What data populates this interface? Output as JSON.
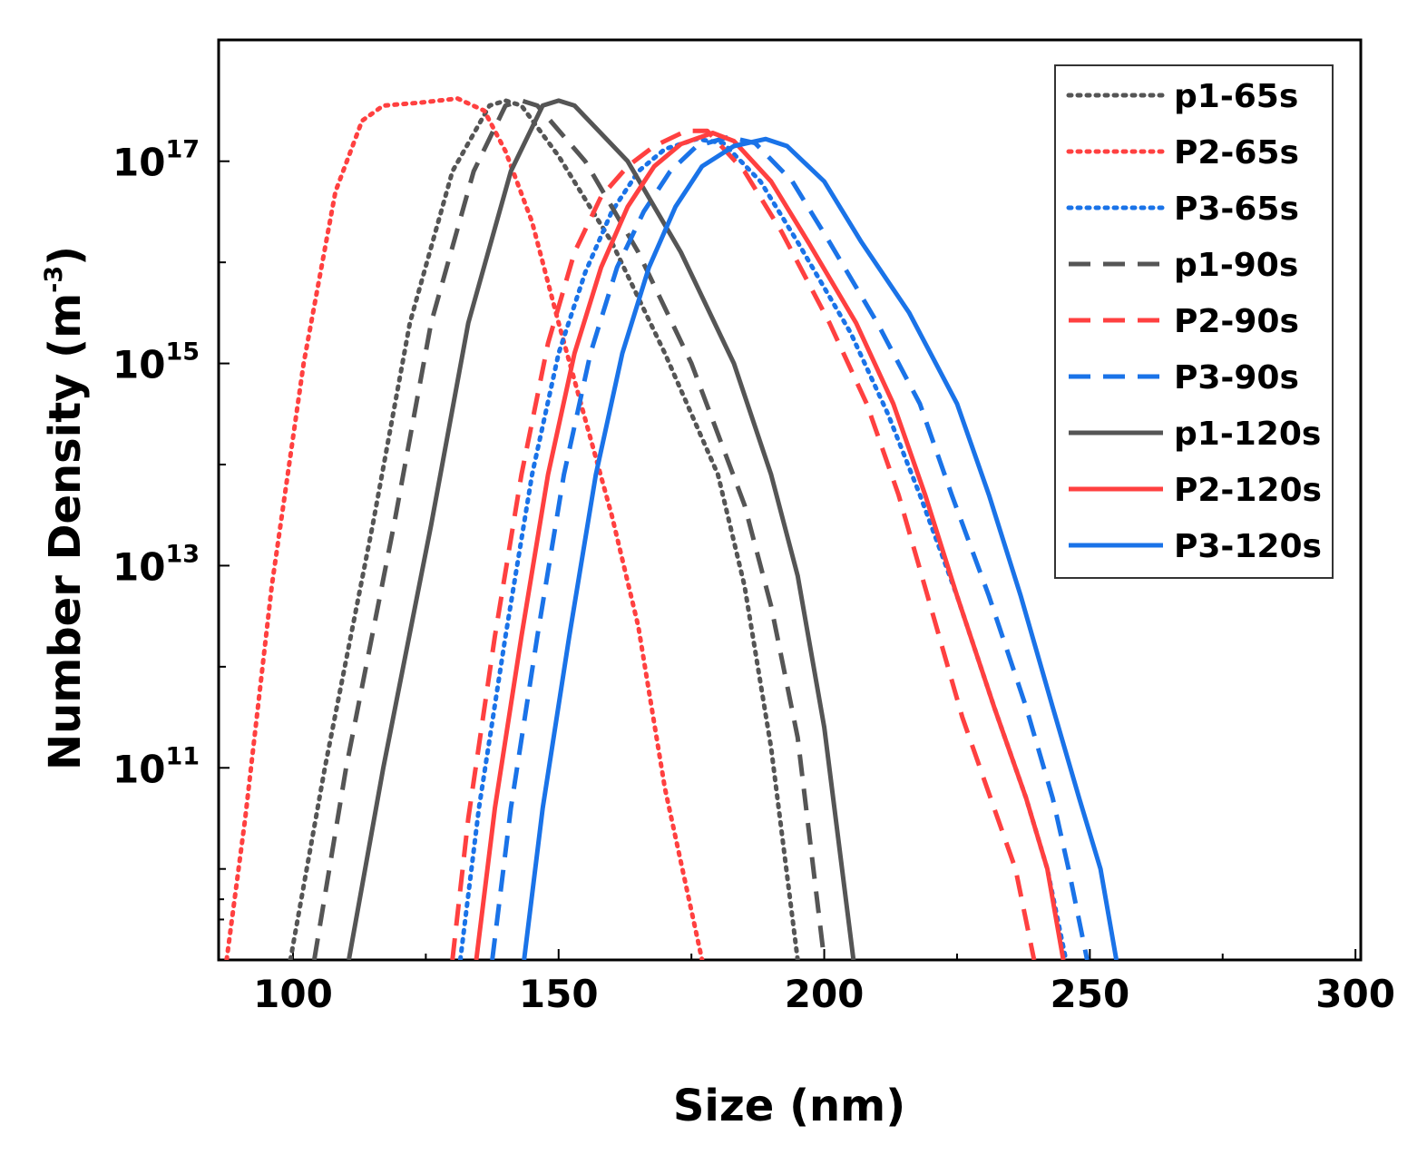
{
  "chart_data": {
    "type": "line",
    "title": "",
    "xlabel": "Size (nm)",
    "ylabel_main": "Number Density (m",
    "ylabel_exp": "-3",
    "ylabel_close": ")",
    "xscale": "linear",
    "yscale": "log",
    "xlim": [
      86,
      301
    ],
    "ylim_log10": [
      9.1,
      18.2
    ],
    "x_ticks": [
      {
        "value": 100,
        "label": "100"
      },
      {
        "value": 150,
        "label": "150"
      },
      {
        "value": 200,
        "label": "200"
      },
      {
        "value": 250,
        "label": "250"
      },
      {
        "value": 300,
        "label": "300"
      }
    ],
    "y_ticks": [
      {
        "exp": 11,
        "base": "10",
        "sup": "11"
      },
      {
        "exp": 13,
        "base": "10",
        "sup": "13"
      },
      {
        "exp": 15,
        "base": "10",
        "sup": "15"
      },
      {
        "exp": 17,
        "base": "10",
        "sup": "17"
      }
    ],
    "y_minor_ticks": [
      10,
      12,
      14,
      16
    ],
    "legend_position": "top-right",
    "series": [
      {
        "name": "p1-65s",
        "color": "#555555",
        "style": "dotted",
        "points": [
          [
            99.5,
            9.1
          ],
          [
            106,
            11
          ],
          [
            115,
            13.4
          ],
          [
            122,
            15.4
          ],
          [
            130,
            16.9
          ],
          [
            137,
            17.55
          ],
          [
            140,
            17.6
          ],
          [
            143,
            17.55
          ],
          [
            150,
            17.05
          ],
          [
            160,
            16.2
          ],
          [
            170,
            15.1
          ],
          [
            180,
            13.9
          ],
          [
            185,
            12.8
          ],
          [
            190,
            11.2
          ],
          [
            195,
            9.1
          ]
        ]
      },
      {
        "name": "P2-65s",
        "color": "#ff4040",
        "style": "dotted",
        "points": [
          [
            87.5,
            9.1
          ],
          [
            91,
            10.5
          ],
          [
            96,
            12.8
          ],
          [
            102,
            15
          ],
          [
            108,
            16.7
          ],
          [
            113,
            17.4
          ],
          [
            117,
            17.55
          ],
          [
            124,
            17.58
          ],
          [
            131,
            17.62
          ],
          [
            136,
            17.5
          ],
          [
            140,
            17.1
          ],
          [
            145,
            16.4
          ],
          [
            150,
            15.4
          ],
          [
            160,
            13.5
          ],
          [
            165,
            12.4
          ],
          [
            170,
            10.8
          ],
          [
            177,
            9.1
          ]
        ]
      },
      {
        "name": "P3-65s",
        "color": "#1a73e8",
        "style": "dotted",
        "points": [
          [
            131.5,
            9.1
          ],
          [
            135,
            10.6
          ],
          [
            140,
            12.3
          ],
          [
            145,
            13.9
          ],
          [
            150,
            15.1
          ],
          [
            155,
            15.9
          ],
          [
            160,
            16.5
          ],
          [
            165,
            16.9
          ],
          [
            170,
            17.12
          ],
          [
            176,
            17.22
          ],
          [
            181,
            17.18
          ],
          [
            188,
            16.8
          ],
          [
            195,
            16.2
          ],
          [
            205,
            15.3
          ],
          [
            212,
            14.5
          ],
          [
            218,
            13.7
          ],
          [
            225,
            12.7
          ],
          [
            232,
            11.6
          ],
          [
            238,
            10.7
          ],
          [
            242,
            10.0
          ],
          [
            245.5,
            9.1
          ]
        ]
      },
      {
        "name": "p1-90s",
        "color": "#555555",
        "style": "dashed",
        "points": [
          [
            104,
            9.1
          ],
          [
            110,
            11
          ],
          [
            119,
            13.4
          ],
          [
            126,
            15.4
          ],
          [
            134,
            16.9
          ],
          [
            140,
            17.55
          ],
          [
            143,
            17.6
          ],
          [
            146,
            17.55
          ],
          [
            155,
            17.0
          ],
          [
            165,
            16.1
          ],
          [
            175,
            15.0
          ],
          [
            185,
            13.6
          ],
          [
            190,
            12.6
          ],
          [
            195,
            11.3
          ],
          [
            200,
            9.1
          ]
        ]
      },
      {
        "name": "P2-90s",
        "color": "#ff4040",
        "style": "dashed",
        "points": [
          [
            130,
            9.1
          ],
          [
            133,
            10.5
          ],
          [
            138,
            12.3
          ],
          [
            143,
            13.9
          ],
          [
            148,
            15.2
          ],
          [
            153,
            16.1
          ],
          [
            158,
            16.65
          ],
          [
            163,
            16.95
          ],
          [
            168,
            17.15
          ],
          [
            174,
            17.3
          ],
          [
            178,
            17.3
          ],
          [
            185,
            16.9
          ],
          [
            192,
            16.3
          ],
          [
            201,
            15.4
          ],
          [
            208,
            14.6
          ],
          [
            214,
            13.7
          ],
          [
            220,
            12.6
          ],
          [
            226,
            11.5
          ],
          [
            232,
            10.6
          ],
          [
            236,
            10.0
          ],
          [
            239.5,
            9.1
          ]
        ]
      },
      {
        "name": "P3-90s",
        "color": "#1a73e8",
        "style": "dashed",
        "points": [
          [
            137.5,
            9.1
          ],
          [
            141,
            10.6
          ],
          [
            146,
            12.3
          ],
          [
            151,
            13.9
          ],
          [
            156,
            15.1
          ],
          [
            161,
            15.95
          ],
          [
            166,
            16.5
          ],
          [
            171,
            16.9
          ],
          [
            176,
            17.15
          ],
          [
            182,
            17.24
          ],
          [
            187,
            17.18
          ],
          [
            194,
            16.8
          ],
          [
            201,
            16.2
          ],
          [
            210,
            15.4
          ],
          [
            218,
            14.6
          ],
          [
            224,
            13.7
          ],
          [
            231,
            12.7
          ],
          [
            238,
            11.6
          ],
          [
            243,
            10.7
          ],
          [
            246,
            10.0
          ],
          [
            249.5,
            9.1
          ]
        ]
      },
      {
        "name": "p1-120s",
        "color": "#555555",
        "style": "solid",
        "points": [
          [
            110.5,
            9.1
          ],
          [
            117,
            11
          ],
          [
            126,
            13.4
          ],
          [
            133,
            15.4
          ],
          [
            141,
            16.9
          ],
          [
            147,
            17.55
          ],
          [
            150,
            17.6
          ],
          [
            153,
            17.55
          ],
          [
            163,
            17.0
          ],
          [
            173,
            16.1
          ],
          [
            183,
            15.0
          ],
          [
            190,
            13.9
          ],
          [
            195,
            12.9
          ],
          [
            200,
            11.4
          ],
          [
            205.5,
            9.1
          ]
        ]
      },
      {
        "name": "P2-120s",
        "color": "#ff4040",
        "style": "solid",
        "points": [
          [
            134.5,
            9.1
          ],
          [
            138,
            10.6
          ],
          [
            143,
            12.3
          ],
          [
            148,
            13.9
          ],
          [
            153,
            15.1
          ],
          [
            158,
            15.95
          ],
          [
            163,
            16.55
          ],
          [
            168,
            16.95
          ],
          [
            173,
            17.17
          ],
          [
            179,
            17.28
          ],
          [
            183,
            17.2
          ],
          [
            190,
            16.8
          ],
          [
            197,
            16.2
          ],
          [
            206,
            15.4
          ],
          [
            213,
            14.6
          ],
          [
            219,
            13.7
          ],
          [
            225,
            12.7
          ],
          [
            232,
            11.6
          ],
          [
            238,
            10.7
          ],
          [
            242,
            10.0
          ],
          [
            245,
            9.1
          ]
        ]
      },
      {
        "name": "P3-120s",
        "color": "#1a73e8",
        "style": "solid",
        "points": [
          [
            143.5,
            9.1
          ],
          [
            147,
            10.6
          ],
          [
            152,
            12.3
          ],
          [
            157,
            13.9
          ],
          [
            162,
            15.1
          ],
          [
            167,
            15.95
          ],
          [
            172,
            16.55
          ],
          [
            177,
            16.95
          ],
          [
            183,
            17.15
          ],
          [
            189,
            17.22
          ],
          [
            193,
            17.15
          ],
          [
            200,
            16.8
          ],
          [
            207,
            16.2
          ],
          [
            216,
            15.5
          ],
          [
            225,
            14.6
          ],
          [
            231,
            13.7
          ],
          [
            237,
            12.7
          ],
          [
            243,
            11.6
          ],
          [
            248,
            10.7
          ],
          [
            252,
            10.0
          ],
          [
            255,
            9.1
          ]
        ]
      }
    ]
  }
}
